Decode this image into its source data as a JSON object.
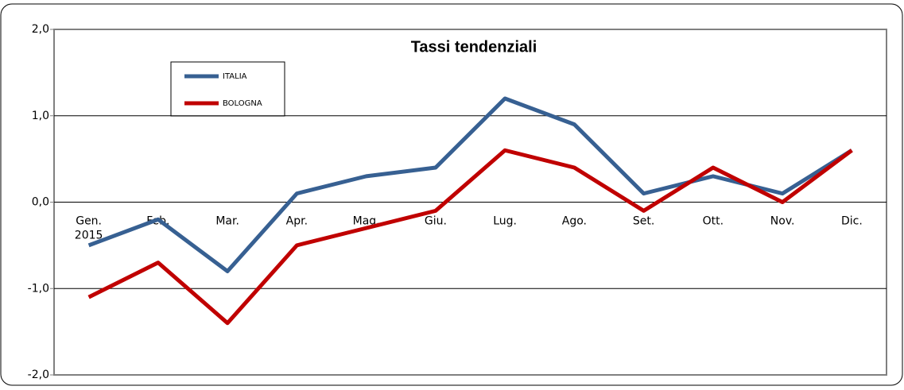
{
  "chart_data": {
    "type": "line",
    "title": "Tassi tendenziali",
    "categories": [
      "Gen.\n2015",
      "Feb.",
      "Mar.",
      "Apr.",
      "Mag.",
      "Giu.",
      "Lug.",
      "Ago.",
      "Set.",
      "Ott.",
      "Nov.",
      "Dic."
    ],
    "series": [
      {
        "name": "ITALIA",
        "color": "#376092",
        "values": [
          -0.5,
          -0.2,
          -0.8,
          0.1,
          0.3,
          0.4,
          1.2,
          0.9,
          0.1,
          0.3,
          0.1,
          0.6
        ]
      },
      {
        "name": "BOLOGNA",
        "color": "#c00000",
        "values": [
          -1.1,
          -0.7,
          -1.4,
          -0.5,
          -0.3,
          -0.1,
          0.6,
          0.4,
          -0.1,
          0.4,
          0.0,
          0.6
        ]
      }
    ],
    "ylim": [
      -2,
      2
    ],
    "yticks": [
      {
        "value": -2,
        "label": "-2,0"
      },
      {
        "value": -1,
        "label": "-1,0"
      },
      {
        "value": 0,
        "label": "0,0"
      },
      {
        "value": 1,
        "label": "1,0"
      },
      {
        "value": 2,
        "label": "2,0"
      }
    ],
    "grid": true
  }
}
